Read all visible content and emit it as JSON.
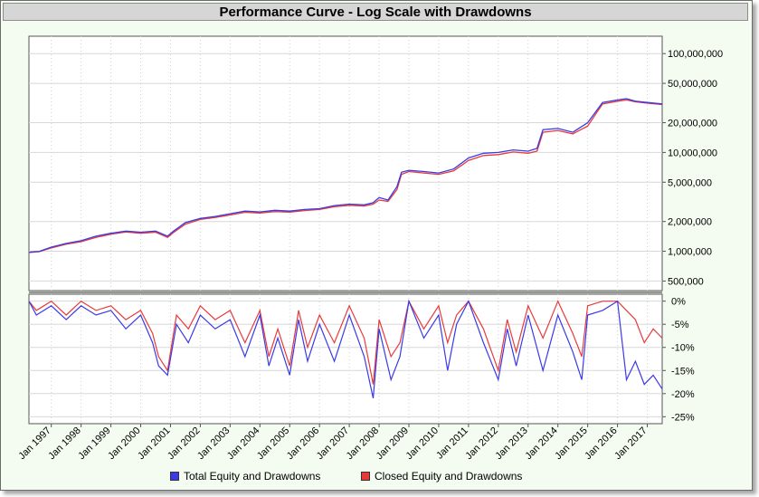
{
  "chart_data": {
    "title": "Performance Curve - Log Scale with Drawdowns",
    "type": "line",
    "x_tick_labels": [
      "Jan 1997",
      "Jan 1998",
      "Jan 1999",
      "Jan 2000",
      "Jan 2001",
      "Jan 2002",
      "Jan 2003",
      "Jan 2004",
      "Jan 2005",
      "Jan 2006",
      "Jan 2007",
      "Jan 2008",
      "Jan 2009",
      "Jan 2010",
      "Jan 2011",
      "Jan 2012",
      "Jan 2013",
      "Jan 2014",
      "Jan 2015",
      "Jan 2016",
      "Jan 2017"
    ],
    "x_range": [
      "1996-04",
      "2017-07"
    ],
    "equity_panel": {
      "scale": "log",
      "y_tick_values": [
        500000,
        1000000,
        2000000,
        5000000,
        10000000,
        20000000,
        50000000,
        100000000
      ],
      "y_tick_labels": [
        "500,000",
        "1,000,000",
        "2,000,000",
        "5,000,000",
        "10,000,000",
        "20,000,000",
        "50,000,000",
        "100,000,000"
      ],
      "ylim": [
        400000,
        150000000
      ],
      "x": [
        1996.25,
        1996.6,
        1997.0,
        1997.5,
        1998.0,
        1998.5,
        1999.0,
        1999.5,
        2000.0,
        2000.5,
        2000.9,
        2001.1,
        2001.5,
        2002.0,
        2002.5,
        2003.0,
        2003.5,
        2004.0,
        2004.5,
        2005.0,
        2005.5,
        2006.0,
        2006.5,
        2007.0,
        2007.5,
        2007.8,
        2008.0,
        2008.3,
        2008.6,
        2008.75,
        2009.0,
        2009.5,
        2010.0,
        2010.5,
        2011.0,
        2011.5,
        2012.0,
        2012.5,
        2013.0,
        2013.3,
        2013.5,
        2014.0,
        2014.5,
        2015.0,
        2015.5,
        2016.0,
        2016.3,
        2016.6,
        2017.0,
        2017.5
      ],
      "series": [
        {
          "name": "Total Equity and Drawdowns",
          "color": "#3a3ae8",
          "values": [
            980000,
            1000000,
            1100000,
            1200000,
            1280000,
            1420000,
            1520000,
            1600000,
            1560000,
            1600000,
            1420000,
            1600000,
            1950000,
            2150000,
            2250000,
            2400000,
            2550000,
            2500000,
            2600000,
            2550000,
            2650000,
            2700000,
            2900000,
            3000000,
            2950000,
            3100000,
            3500000,
            3300000,
            4500000,
            6300000,
            6600000,
            6400000,
            6200000,
            6800000,
            8800000,
            9800000,
            10000000,
            10600000,
            10300000,
            11000000,
            17000000,
            17500000,
            16000000,
            20000000,
            32000000,
            34000000,
            35000000,
            33000000,
            32000000,
            31000000
          ]
        },
        {
          "name": "Closed Equity and Drawdowns",
          "color": "#e83a3a",
          "values": [
            970000,
            990000,
            1080000,
            1180000,
            1250000,
            1380000,
            1490000,
            1570000,
            1520000,
            1560000,
            1380000,
            1550000,
            1880000,
            2100000,
            2200000,
            2330000,
            2480000,
            2440000,
            2520000,
            2490000,
            2580000,
            2650000,
            2820000,
            2920000,
            2870000,
            3000000,
            3300000,
            3200000,
            4200000,
            6000000,
            6400000,
            6200000,
            6000000,
            6500000,
            8300000,
            9300000,
            9500000,
            10100000,
            9800000,
            10300000,
            16000000,
            16700000,
            15400000,
            18500000,
            31000000,
            33000000,
            34000000,
            32500000,
            31500000,
            30500000
          ]
        }
      ]
    },
    "drawdown_panel": {
      "y_tick_values": [
        0,
        -5,
        -10,
        -15,
        -20,
        -25
      ],
      "y_tick_labels": [
        "0%",
        "-5%",
        "-10%",
        "-15%",
        "-20%",
        "-25%"
      ],
      "ylim": [
        -26.5,
        1.5
      ],
      "x": [
        1996.25,
        1996.5,
        1997.0,
        1997.5,
        1998.0,
        1998.5,
        1999.0,
        1999.5,
        2000.0,
        2000.4,
        2000.6,
        2000.9,
        2001.2,
        2001.6,
        2002.0,
        2002.5,
        2003.0,
        2003.5,
        2004.0,
        2004.3,
        2004.6,
        2005.0,
        2005.3,
        2005.6,
        2006.0,
        2006.5,
        2007.0,
        2007.5,
        2007.8,
        2008.0,
        2008.4,
        2008.7,
        2009.0,
        2009.5,
        2010.0,
        2010.3,
        2010.6,
        2011.0,
        2011.5,
        2012.0,
        2012.3,
        2012.6,
        2013.0,
        2013.5,
        2014.0,
        2014.5,
        2014.8,
        2015.0,
        2015.5,
        2016.0,
        2016.3,
        2016.6,
        2016.9,
        2017.2,
        2017.5
      ],
      "series": [
        {
          "name": "Total Equity and Drawdowns",
          "values": [
            0,
            -3,
            -1,
            -4,
            -1,
            -3,
            -2,
            -6,
            -3,
            -9,
            -14,
            -16,
            -5,
            -9,
            -3,
            -6,
            -4,
            -12,
            -3,
            -14,
            -8,
            -16,
            -4,
            -13,
            -5,
            -13,
            -3,
            -12,
            -21,
            -6,
            -17,
            -12,
            0,
            -8,
            -3,
            -15,
            -5,
            0,
            -9,
            -17,
            -6,
            -14,
            -3,
            -15,
            -3,
            -11,
            -17,
            -3,
            -2,
            0,
            -17,
            -13,
            -18,
            -16,
            -19
          ]
        },
        {
          "name": "Closed Equity and Drawdowns",
          "values": [
            0,
            -2,
            0,
            -3,
            0,
            -2,
            -1,
            -4,
            -2,
            -7,
            -12,
            -15,
            -3,
            -6,
            -1,
            -4,
            -2,
            -9,
            -2,
            -12,
            -6,
            -14,
            -2,
            -10,
            -3,
            -9,
            -1,
            -8,
            -18,
            -4,
            -12,
            -9,
            0,
            -6,
            -1,
            -9,
            -3,
            0,
            -6,
            -15,
            -4,
            -11,
            -1,
            -8,
            0,
            -7,
            -12,
            -1,
            0,
            0,
            -2,
            -4,
            -9,
            -6,
            -8
          ]
        }
      ]
    },
    "legend_position": "bottom-center"
  }
}
